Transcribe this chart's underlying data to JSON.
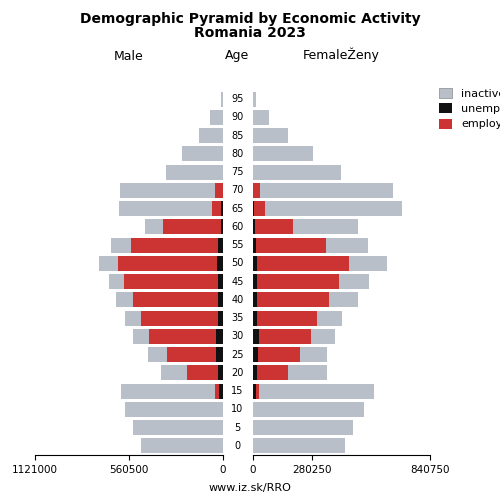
{
  "title_line1": "Demographic Pyramid by Economic Activity",
  "title_line2": "Romania 2023",
  "label_left": "Male",
  "label_right": "FemaleŽeny",
  "label_center": "Age",
  "footer": "www.iz.sk/RRO",
  "ages": [
    0,
    5,
    10,
    15,
    20,
    25,
    30,
    35,
    40,
    45,
    50,
    55,
    60,
    65,
    70,
    75,
    80,
    85,
    90,
    95
  ],
  "male_inactive": [
    490000,
    535000,
    585000,
    565000,
    155000,
    115000,
    100000,
    92000,
    100000,
    90000,
    118000,
    118000,
    110000,
    560000,
    570000,
    340000,
    240000,
    138000,
    72000,
    9000
  ],
  "male_unemployed": [
    0,
    0,
    0,
    18000,
    28000,
    38000,
    38000,
    28000,
    28000,
    28000,
    32000,
    28000,
    10000,
    9000,
    0,
    0,
    0,
    0,
    0,
    0
  ],
  "male_employed": [
    0,
    0,
    0,
    25000,
    185000,
    295000,
    400000,
    460000,
    510000,
    560000,
    590000,
    520000,
    345000,
    52000,
    42000,
    0,
    0,
    0,
    0,
    0
  ],
  "female_inactive": [
    440000,
    478000,
    528000,
    545000,
    185000,
    125000,
    115000,
    115000,
    140000,
    140000,
    178000,
    198000,
    305000,
    648000,
    630000,
    418000,
    288000,
    170000,
    78000,
    15000
  ],
  "female_unemployed": [
    0,
    0,
    0,
    16000,
    22000,
    26000,
    30000,
    22000,
    22000,
    22000,
    22000,
    16000,
    12000,
    7000,
    0,
    0,
    0,
    0,
    0,
    0
  ],
  "female_employed": [
    0,
    0,
    0,
    16000,
    145000,
    200000,
    248000,
    285000,
    340000,
    388000,
    435000,
    332000,
    182000,
    52000,
    34000,
    0,
    0,
    0,
    0,
    0
  ],
  "xlim_male": 1121000,
  "xlim_female": 840750,
  "xticks_left": [
    1121000,
    560500,
    0
  ],
  "xticks_right": [
    0,
    280250,
    840750
  ],
  "inactive_color": "#b8bfc8",
  "unemployed_color": "#111111",
  "employed_color": "#cc3333",
  "bg_color": "#ffffff"
}
